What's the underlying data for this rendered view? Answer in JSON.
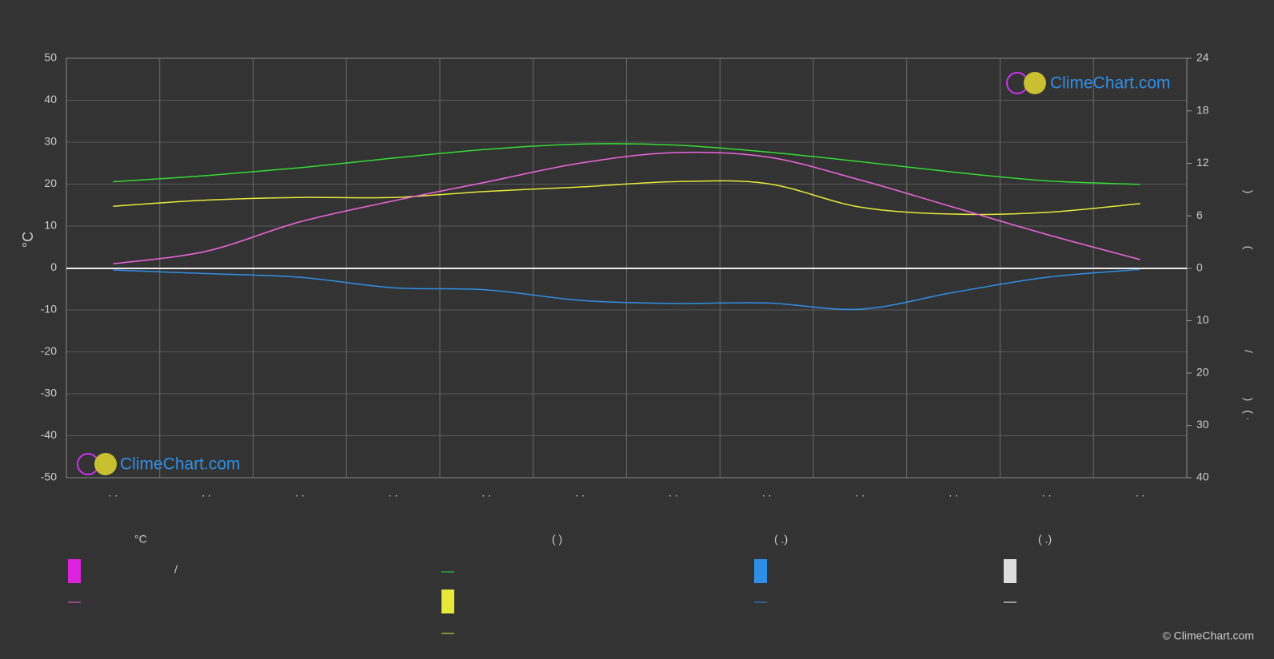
{
  "chart_data": {
    "type": "line",
    "categories": [
      ". .",
      ". .",
      ". .",
      ". .",
      ". .",
      ". .",
      ". .",
      ". .",
      ". .",
      ". .",
      ". .",
      ". ."
    ],
    "ylabel": "°C",
    "ylim": [
      -50,
      50
    ],
    "yticks": [
      -50,
      -40,
      -30,
      -20,
      -10,
      0,
      10,
      20,
      30,
      40,
      50
    ],
    "y2lim": [
      0,
      24
    ],
    "y2ticks": [
      0,
      6,
      12,
      18,
      24
    ],
    "y3lim": [
      0,
      40
    ],
    "y3ticks": [
      10,
      20,
      30,
      40
    ],
    "y2label_parts": [
      ")",
      "(",
      "/",
      ")",
      "( ·"
    ],
    "grid": true,
    "series": [
      {
        "color": "#33dd33",
        "axis": "y2",
        "values": [
          9.9,
          10.6,
          11.5,
          12.6,
          13.6,
          14.2,
          14.1,
          13.3,
          12.2,
          11.0,
          10.0,
          9.6
        ]
      },
      {
        "color": "#e8e83a",
        "axis": "y2",
        "values": [
          7.1,
          7.8,
          8.1,
          8.1,
          8.8,
          9.3,
          9.9,
          9.7,
          7.0,
          6.2,
          6.4,
          7.4
        ]
      },
      {
        "color": "#ee66dd",
        "axis": "y",
        "values": [
          1,
          4,
          11,
          16,
          20.5,
          25,
          27.5,
          26.5,
          21,
          14.5,
          8,
          2
        ]
      },
      {
        "color": "#2f8fe6",
        "axis": "y3",
        "values": [
          0.3,
          1,
          1.7,
          3.7,
          4.1,
          6.1,
          6.7,
          6.6,
          7.8,
          4.6,
          1.7,
          0.2
        ]
      }
    ],
    "legend_headings": [
      "°C",
      "(          )",
      "(   .)",
      "(   .)"
    ],
    "legend_slash": "/",
    "watermark": "ClimeChart.com",
    "copyright": "© ClimeChart.com"
  }
}
